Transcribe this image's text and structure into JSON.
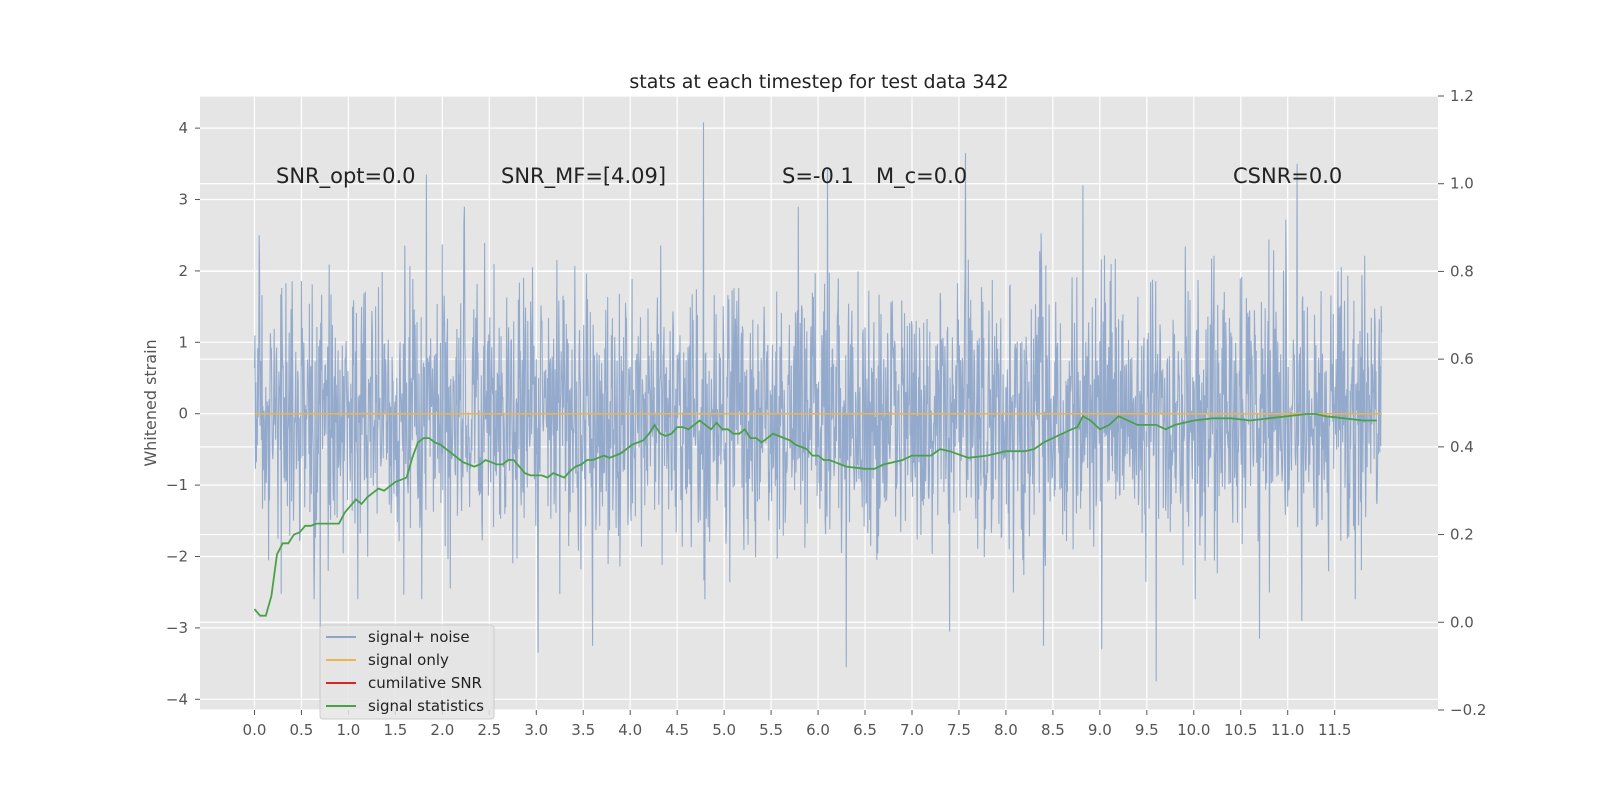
{
  "chart_data": {
    "type": "line",
    "title": "stats at each timestep for test data 342",
    "ylabel": "Whitened strain",
    "xlim": [
      -0.58,
      12.6
    ],
    "ylim": [
      -4.15,
      4.45
    ],
    "y2lim": [
      -0.2,
      1.2
    ],
    "grid": true,
    "legend_position": "lower-left",
    "x_ticks": [
      "0.0",
      "0.5",
      "1.0",
      "1.5",
      "2.0",
      "2.5",
      "3.0",
      "3.5",
      "4.0",
      "4.5",
      "5.0",
      "5.5",
      "6.0",
      "6.5",
      "7.0",
      "7.5",
      "8.0",
      "8.5",
      "9.0",
      "9.5",
      "10.0",
      "10.5",
      "11.0",
      "11.5"
    ],
    "y_ticks": [
      "4",
      "3",
      "2",
      "1",
      "0",
      "−1",
      "−2",
      "−3",
      "−4"
    ],
    "y2_ticks": [
      "1.2",
      "1.0",
      "0.8",
      "0.6",
      "0.4",
      "0.2",
      "0.0",
      "−0.2"
    ],
    "annotations": [
      {
        "text": "SNR_opt=0.0",
        "x": 0.2
      },
      {
        "text": "SNR_MF=[4.09]",
        "x": 2.6
      },
      {
        "text": "S=-0.1",
        "x": 5.6
      },
      {
        "text": "M_c=0.0",
        "x": 6.6
      },
      {
        "text": "CSNR=0.0",
        "x": 10.4
      }
    ],
    "series": [
      {
        "name": "signal+ noise",
        "color": "#8fa6ca",
        "axis": "left",
        "spikes_up": [
          [
            0.05,
            2.5
          ],
          [
            1.83,
            3.35
          ],
          [
            4.78,
            4.08
          ],
          [
            6.1,
            3.45
          ],
          [
            7.57,
            3.65
          ],
          [
            8.82,
            3.2
          ],
          [
            11.1,
            3.5
          ]
        ],
        "spikes_down": [
          [
            0.7,
            -3.0
          ],
          [
            3.02,
            -3.35
          ],
          [
            3.6,
            -3.25
          ],
          [
            6.3,
            -3.55
          ],
          [
            7.4,
            -3.05
          ],
          [
            8.4,
            -3.25
          ],
          [
            9.02,
            -3.3
          ],
          [
            9.6,
            -3.75
          ],
          [
            10.7,
            -3.15
          ],
          [
            11.15,
            -2.9
          ]
        ]
      },
      {
        "name": "signal only",
        "color": "#ecb54f",
        "axis": "left",
        "x": [
          0.0,
          12.0
        ],
        "y": [
          0.0,
          0.0
        ]
      },
      {
        "name": "cumilative SNR",
        "color": "#d62728",
        "axis": "right",
        "x": [],
        "y": []
      },
      {
        "name": "signal statistics",
        "color": "#4aa04a",
        "axis": "right",
        "x": [
          0.0,
          0.06,
          0.12,
          0.18,
          0.24,
          0.3,
          0.36,
          0.42,
          0.48,
          0.54,
          0.6,
          0.66,
          0.72,
          0.78,
          0.84,
          0.9,
          0.96,
          1.02,
          1.08,
          1.14,
          1.2,
          1.26,
          1.32,
          1.38,
          1.44,
          1.5,
          1.56,
          1.62,
          1.68,
          1.74,
          1.8,
          1.86,
          1.92,
          1.98,
          2.04,
          2.1,
          2.16,
          2.22,
          2.28,
          2.34,
          2.4,
          2.46,
          2.52,
          2.58,
          2.64,
          2.7,
          2.76,
          2.82,
          2.88,
          2.94,
          3.0,
          3.06,
          3.12,
          3.18,
          3.24,
          3.3,
          3.36,
          3.42,
          3.48,
          3.54,
          3.6,
          3.66,
          3.72,
          3.78,
          3.84,
          3.9,
          3.96,
          4.02,
          4.08,
          4.14,
          4.2,
          4.26,
          4.32,
          4.38,
          4.44,
          4.5,
          4.56,
          4.62,
          4.68,
          4.74,
          4.8,
          4.86,
          4.92,
          4.98,
          5.04,
          5.1,
          5.16,
          5.22,
          5.28,
          5.34,
          5.4,
          5.46,
          5.52,
          5.58,
          5.64,
          5.7,
          5.76,
          5.82,
          5.88,
          5.94,
          6.0,
          6.06,
          6.12,
          6.18,
          6.24,
          6.3,
          6.5,
          6.6,
          6.7,
          6.8,
          6.9,
          7.0,
          7.2,
          7.3,
          7.4,
          7.6,
          7.8,
          8.0,
          8.2,
          8.3,
          8.4,
          8.5,
          8.6,
          8.7,
          8.76,
          8.82,
          8.9,
          9.0,
          9.1,
          9.2,
          9.4,
          9.5,
          9.6,
          9.7,
          9.8,
          10.0,
          10.2,
          10.4,
          10.6,
          10.8,
          11.0,
          11.2,
          11.3,
          11.4,
          11.6,
          11.8,
          11.95
        ],
        "y": [
          0.03,
          0.015,
          0.015,
          0.06,
          0.155,
          0.18,
          0.18,
          0.2,
          0.205,
          0.22,
          0.22,
          0.225,
          0.225,
          0.225,
          0.225,
          0.225,
          0.25,
          0.265,
          0.28,
          0.27,
          0.285,
          0.295,
          0.305,
          0.3,
          0.31,
          0.32,
          0.325,
          0.33,
          0.375,
          0.41,
          0.42,
          0.42,
          0.41,
          0.405,
          0.395,
          0.385,
          0.375,
          0.365,
          0.36,
          0.355,
          0.36,
          0.37,
          0.365,
          0.36,
          0.36,
          0.37,
          0.37,
          0.355,
          0.34,
          0.335,
          0.335,
          0.335,
          0.33,
          0.34,
          0.335,
          0.33,
          0.345,
          0.355,
          0.36,
          0.37,
          0.37,
          0.375,
          0.38,
          0.375,
          0.38,
          0.385,
          0.395,
          0.405,
          0.41,
          0.415,
          0.43,
          0.45,
          0.43,
          0.425,
          0.43,
          0.445,
          0.445,
          0.44,
          0.45,
          0.46,
          0.45,
          0.44,
          0.455,
          0.44,
          0.44,
          0.43,
          0.43,
          0.44,
          0.42,
          0.42,
          0.41,
          0.42,
          0.43,
          0.425,
          0.42,
          0.415,
          0.405,
          0.4,
          0.395,
          0.38,
          0.38,
          0.37,
          0.37,
          0.365,
          0.36,
          0.355,
          0.35,
          0.35,
          0.36,
          0.365,
          0.37,
          0.38,
          0.38,
          0.395,
          0.39,
          0.375,
          0.38,
          0.39,
          0.39,
          0.395,
          0.41,
          0.42,
          0.43,
          0.44,
          0.445,
          0.47,
          0.46,
          0.44,
          0.45,
          0.47,
          0.45,
          0.45,
          0.45,
          0.44,
          0.45,
          0.46,
          0.465,
          0.465,
          0.46,
          0.465,
          0.47,
          0.475,
          0.475,
          0.47,
          0.465,
          0.46,
          0.46
        ]
      }
    ]
  }
}
